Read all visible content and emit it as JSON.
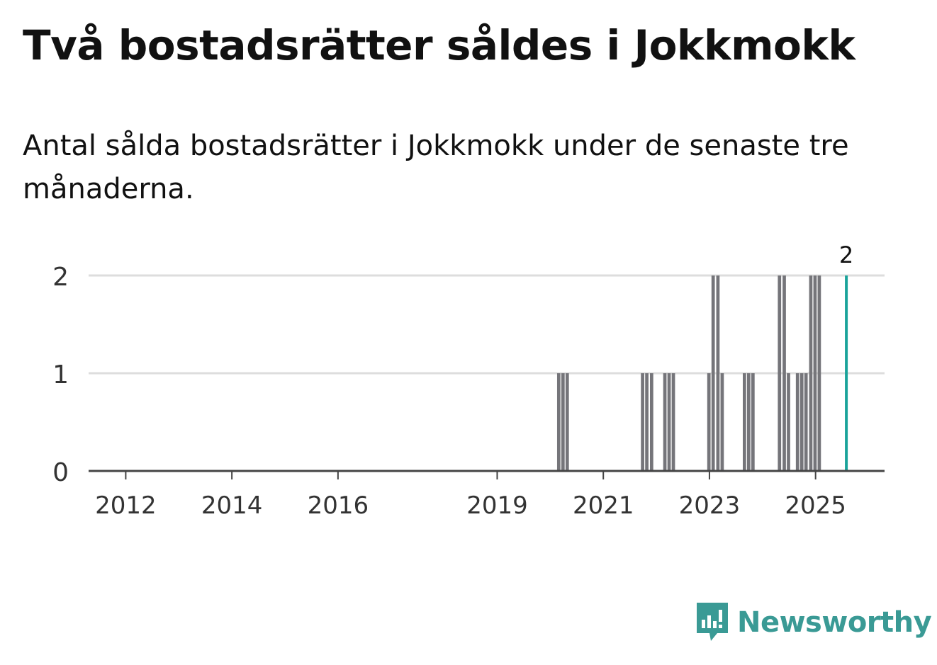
{
  "brand": {
    "name": "Newsworthy",
    "color": "#3a9a95",
    "icon": "newsworthy-logo-icon"
  },
  "colors": {
    "bar": "#75757a",
    "highlight": "#1aa39a",
    "grid": "#dddddd",
    "axis": "#444444"
  },
  "chart_data": {
    "type": "bar",
    "title": "Två bostadsrätter såldes i Jokkmokk",
    "subtitle": "Antal sålda bostadsrätter i Jokkmokk under de senaste tre månaderna.",
    "xlabel": "",
    "ylabel": "",
    "ylim": [
      0,
      2
    ],
    "yticks": [
      0,
      1,
      2
    ],
    "xlim": [
      2011.3,
      2026.3
    ],
    "xticks": [
      2012,
      2014,
      2016,
      2019,
      2021,
      2023,
      2025
    ],
    "grid": true,
    "bar_width_years": 0.083,
    "series": [
      {
        "name": "Antal sålda bostadsrätter",
        "x": [
          2020.17,
          2020.25,
          2020.33,
          2021.75,
          2021.83,
          2021.92,
          2022.17,
          2022.25,
          2022.33,
          2023.0,
          2023.08,
          2023.17,
          2023.25,
          2023.67,
          2023.75,
          2023.83,
          2024.33,
          2024.42,
          2024.5,
          2024.67,
          2024.75,
          2024.83,
          2024.92,
          2025.0,
          2025.08
        ],
        "values": [
          1,
          1,
          1,
          1,
          1,
          1,
          1,
          1,
          1,
          1,
          2,
          2,
          1,
          1,
          1,
          1,
          2,
          2,
          1,
          1,
          1,
          1,
          2,
          2,
          2
        ]
      }
    ],
    "highlight": {
      "x": 2025.58,
      "value": 2,
      "label": "2"
    }
  }
}
